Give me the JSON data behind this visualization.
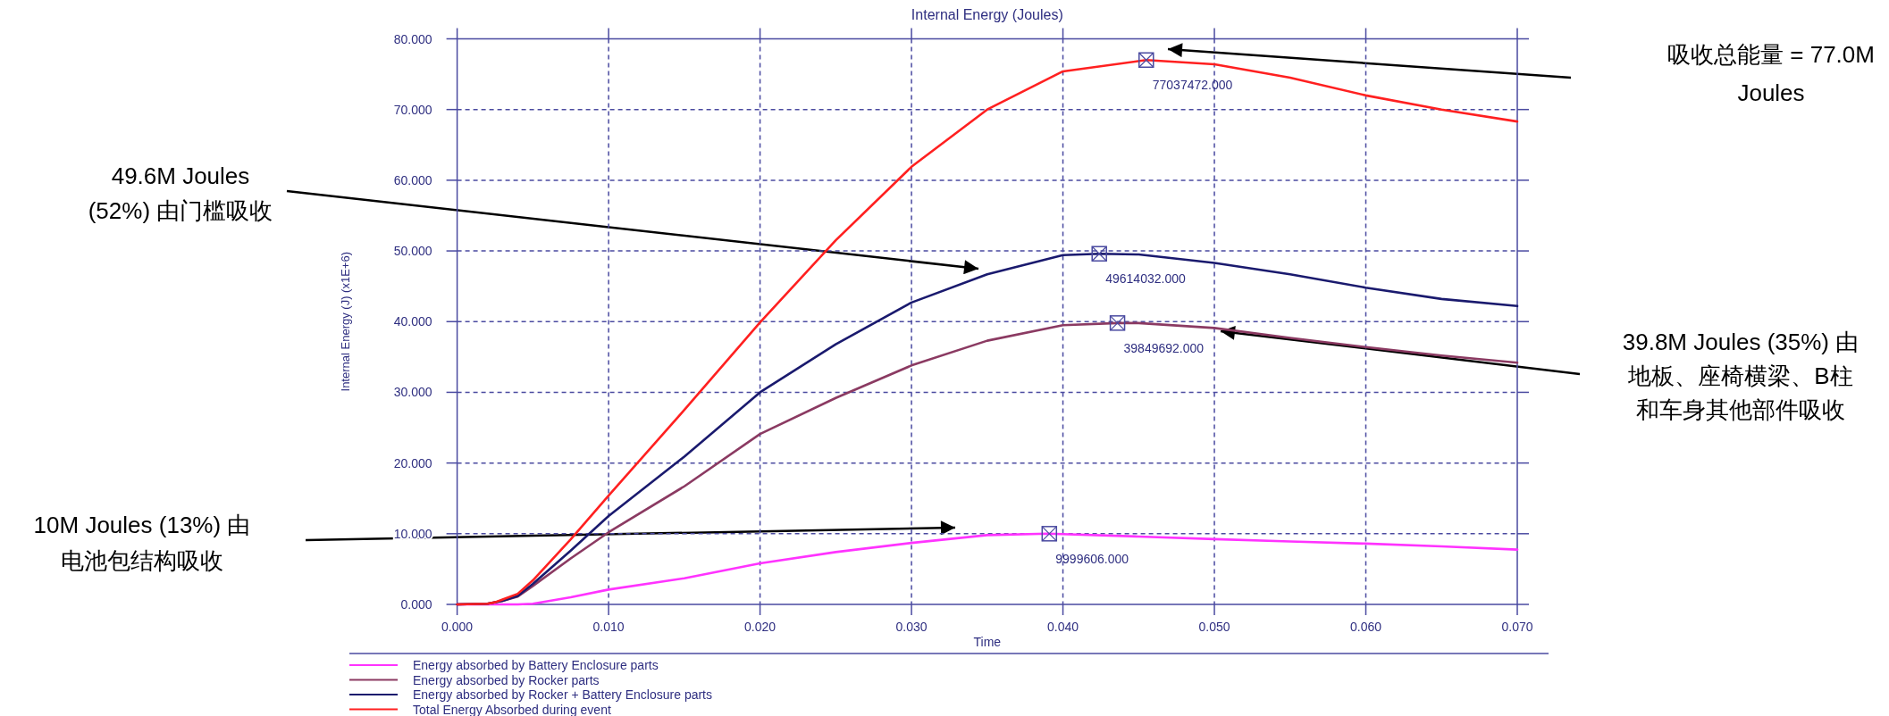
{
  "chart_data": {
    "type": "line",
    "title": "Internal Energy (Joules)",
    "xlabel": "Time",
    "ylabel": "Internal Energy (J) (x1E+6)",
    "xlim": [
      0,
      0.07
    ],
    "ylim": [
      0,
      80
    ],
    "xticks": [
      {
        "value": 0,
        "label": "0.000"
      },
      {
        "value": 0.01,
        "label": "0.010"
      },
      {
        "value": 0.02,
        "label": "0.020"
      },
      {
        "value": 0.03,
        "label": "0.030"
      },
      {
        "value": 0.04,
        "label": "0.040"
      },
      {
        "value": 0.05,
        "label": "0.050"
      },
      {
        "value": 0.06,
        "label": "0.060"
      },
      {
        "value": 0.07,
        "label": "0.070"
      }
    ],
    "yticks": [
      {
        "value": 0,
        "label": "0.000"
      },
      {
        "value": 10,
        "label": "10.000"
      },
      {
        "value": 20,
        "label": "20.000"
      },
      {
        "value": 30,
        "label": "30.000"
      },
      {
        "value": 40,
        "label": "40.000"
      },
      {
        "value": 50,
        "label": "50.000"
      },
      {
        "value": 60,
        "label": "60.000"
      },
      {
        "value": 70,
        "label": "70.000"
      },
      {
        "value": 80,
        "label": "80.000"
      }
    ],
    "grid": true,
    "legend": "bottom",
    "line_style": "solid",
    "series": [
      {
        "name": "Energy absorbed by Battery Enclosure parts",
        "color": "#ff33ff",
        "x": [
          0,
          0.004,
          0.005,
          0.0075,
          0.01,
          0.015,
          0.02,
          0.025,
          0.03,
          0.035,
          0.039,
          0.045,
          0.05,
          0.055,
          0.06,
          0.065,
          0.07
        ],
        "values": [
          0,
          0,
          0.1,
          1.0,
          2.1,
          3.7,
          5.8,
          7.4,
          8.7,
          9.8,
          10.0,
          9.6,
          9.24,
          8.9,
          8.6,
          8.2,
          7.75
        ]
      },
      {
        "name": "Energy absorbed by Rocker parts",
        "color": "#8b3a62",
        "x": [
          0,
          0.002,
          0.003,
          0.004,
          0.005,
          0.0075,
          0.01,
          0.015,
          0.02,
          0.025,
          0.03,
          0.035,
          0.04,
          0.0436,
          0.045,
          0.05,
          0.055,
          0.06,
          0.065,
          0.07
        ],
        "values": [
          0,
          0.1,
          0.5,
          1.1,
          2.6,
          6.5,
          10.2,
          16.7,
          24.1,
          29.2,
          33.8,
          37.3,
          39.5,
          39.8,
          39.8,
          39.1,
          37.7,
          36.4,
          35.2,
          34.2
        ]
      },
      {
        "name": "Energy absorbed by Rocker + Battery Enclosure parts",
        "color": "#1a1a6e",
        "x": [
          0,
          0.002,
          0.003,
          0.004,
          0.005,
          0.0075,
          0.01,
          0.015,
          0.02,
          0.025,
          0.03,
          0.035,
          0.04,
          0.0424,
          0.045,
          0.05,
          0.055,
          0.06,
          0.065,
          0.07
        ],
        "values": [
          0,
          0.1,
          0.5,
          1.2,
          2.9,
          7.6,
          12.5,
          20.9,
          30.0,
          36.8,
          42.7,
          46.7,
          49.4,
          49.6,
          49.5,
          48.3,
          46.7,
          44.8,
          43.2,
          42.2
        ]
      },
      {
        "name": "Total Energy Absorbed during event",
        "color": "#ff2020",
        "x": [
          0,
          0.002,
          0.0025,
          0.003,
          0.004,
          0.005,
          0.0075,
          0.01,
          0.015,
          0.02,
          0.025,
          0.03,
          0.035,
          0.04,
          0.0455,
          0.05,
          0.055,
          0.06,
          0.065,
          0.07
        ],
        "values": [
          0,
          0.1,
          0.3,
          0.7,
          1.5,
          3.4,
          9.2,
          15.4,
          27.5,
          39.9,
          51.5,
          61.9,
          70.0,
          75.4,
          77.0,
          76.4,
          74.5,
          72.0,
          70.0,
          68.3
        ]
      }
    ],
    "annotations": [
      "吸收总能量 = 77.0M Joules",
      "49.6M Joules (52%) 由门槛吸收",
      "10M Joules (13%) 由电池包结构吸收",
      "39.8M Joules (35%) 由地板、座椅横梁、B柱和车身其他部件吸收",
      {
        "text": "77037472.000",
        "x": 0.0455,
        "y": 77.0
      },
      {
        "text": "49614032.000",
        "x": 0.0424,
        "y": 49.6
      },
      {
        "text": "39849692.000",
        "x": 0.0436,
        "y": 39.8
      },
      {
        "text": "9999606.000",
        "x": 0.0391,
        "y": 10.0
      }
    ]
  }
}
